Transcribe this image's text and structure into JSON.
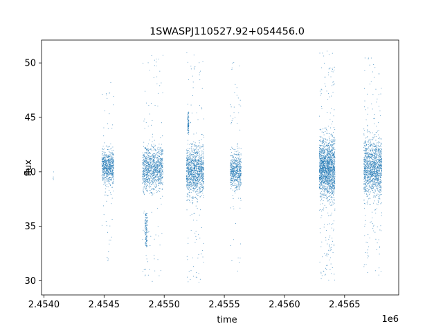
{
  "chart_data": {
    "type": "scatter",
    "title": "1SWASPJ110527.92+054456.0",
    "xlabel": "time",
    "ylabel": "flux",
    "x_offset_label": "1e6",
    "xlim": [
      2453980,
      2456950
    ],
    "ylim": [
      28.7,
      52.1
    ],
    "grid": false,
    "legend": "none",
    "x_ticks": [
      {
        "value": 2454000,
        "label": "2.4540"
      },
      {
        "value": 2454500,
        "label": "2.4545"
      },
      {
        "value": 2455000,
        "label": "2.4550"
      },
      {
        "value": 2455500,
        "label": "2.4555"
      },
      {
        "value": 2456000,
        "label": "2.4560"
      },
      {
        "value": 2456500,
        "label": "2.4565"
      }
    ],
    "y_ticks": [
      {
        "value": 30,
        "label": "30"
      },
      {
        "value": 35,
        "label": "35"
      },
      {
        "value": 40,
        "label": "40"
      },
      {
        "value": 45,
        "label": "45"
      },
      {
        "value": 50,
        "label": "50"
      }
    ],
    "series_color": "#1f77b4",
    "series": [
      {
        "observing_seasons": [
          {
            "x_start": 2454077,
            "x_end": 2454080,
            "y_center": 39.3,
            "y_core_low": 38.9,
            "y_core_high": 40.5,
            "y_min": 38.8,
            "y_max": 40.6,
            "n_points": 4
          },
          {
            "x_start": 2454482,
            "x_end": 2454580,
            "y_center": 40.5,
            "y_core_low": 38.5,
            "y_core_high": 43.0,
            "y_min": 30.4,
            "y_max": 49.1,
            "n_points": 700
          },
          {
            "x_start": 2454820,
            "x_end": 2454990,
            "y_center": 40.3,
            "y_core_low": 37.5,
            "y_core_high": 43.0,
            "y_min": 29.8,
            "y_max": 50.8,
            "n_points": 1100
          },
          {
            "x_start": 2455185,
            "x_end": 2455330,
            "y_center": 40.1,
            "y_core_low": 37.0,
            "y_core_high": 43.2,
            "y_min": 29.8,
            "y_max": 51.0,
            "n_points": 1200
          },
          {
            "x_start": 2455550,
            "x_end": 2455640,
            "y_center": 40.1,
            "y_core_low": 38.0,
            "y_core_high": 42.8,
            "y_min": 30.8,
            "y_max": 50.3,
            "n_points": 600
          },
          {
            "x_start": 2456290,
            "x_end": 2456420,
            "y_center": 40.3,
            "y_core_low": 37.0,
            "y_core_high": 44.5,
            "y_min": 29.9,
            "y_max": 51.1,
            "n_points": 1800
          },
          {
            "x_start": 2456660,
            "x_end": 2456810,
            "y_center": 40.3,
            "y_core_low": 36.5,
            "y_core_high": 44.0,
            "y_min": 30.4,
            "y_max": 50.6,
            "n_points": 1400
          }
        ],
        "outlier_groups": [
          {
            "x_start": 2454840,
            "x_end": 2454860,
            "y_low": 33.1,
            "y_high": 36.2,
            "n_points": 120
          },
          {
            "x_start": 2455195,
            "x_end": 2455205,
            "y_low": 43.5,
            "y_high": 45.5,
            "n_points": 80
          }
        ]
      }
    ]
  }
}
